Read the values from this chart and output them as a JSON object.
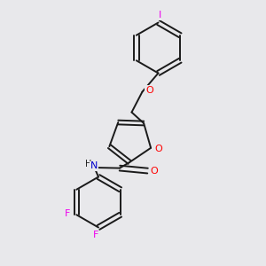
{
  "bg_color": "#e8e8eb",
  "bond_color": "#1a1a1a",
  "O_color": "#ff0000",
  "N_color": "#0000cc",
  "F_color": "#ee00ee",
  "I_color": "#ee00ee",
  "line_width": 1.4,
  "dbo": 0.012,
  "figsize": [
    3.0,
    3.0
  ],
  "dpi": 100,
  "xlim": [
    0,
    1
  ],
  "ylim": [
    0,
    1
  ]
}
